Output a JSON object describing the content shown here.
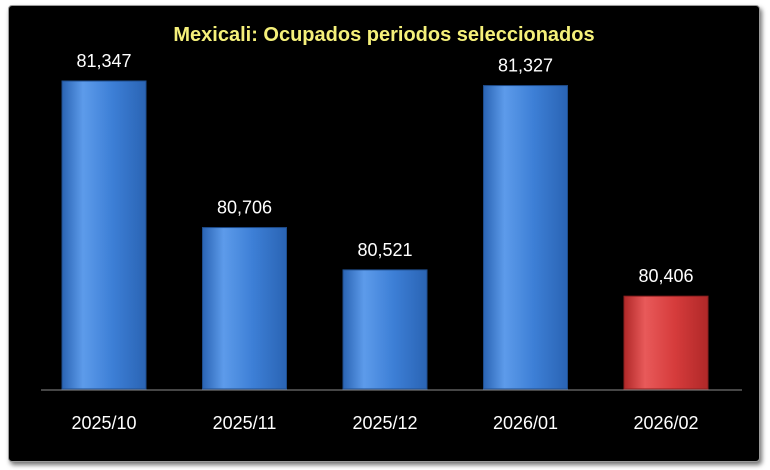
{
  "chart_data": {
    "type": "bar",
    "title": "Mexicali: Ocupados periodos seleccionados",
    "categories": [
      "2025/10",
      "2025/11",
      "2025/12",
      "2026/01",
      "2026/02"
    ],
    "values": [
      81347,
      80706,
      80521,
      81327,
      80406
    ],
    "value_labels": [
      "81,347",
      "80,706",
      "80,521",
      "81,327",
      "80,406"
    ],
    "ylim": [
      80000,
      81500
    ],
    "grid": false,
    "legend": "none",
    "colors": {
      "bar": "#3b7fd9",
      "highlight_bar": "#d93a3a",
      "background": "#000000",
      "title": "#f5f07a",
      "text": "#ffffff"
    },
    "highlight_index": 4
  }
}
